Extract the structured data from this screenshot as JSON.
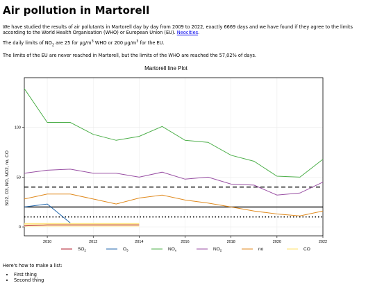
{
  "page": {
    "title": "Air pollution in Martorell",
    "para1_text": "We have studied the results of air pollutants in Martorell day by day from 2009 to 2022, exactly 6669 days and we have found if they agree to the limits according to the World Health Organisation (WHO) or European Union (EU). ",
    "para1_link": "Neocities",
    "para1_end": ".",
    "para2_a": "The daily limits of NO",
    "para2_sub": "2",
    "para2_b": " are 25 for µg/m",
    "para2_sup1": "3",
    "para2_c": " WHO or 200 µg/m",
    "para2_sup2": "3",
    "para2_d": " for the EU.",
    "para3": "The limits of the EU are never reached in Martorell, but the limits of the WHO are reached the 57,02% of days.",
    "list_intro": "Here's how to make a list:",
    "list_items": [
      "First thing",
      "Second thing"
    ]
  },
  "chart_data": {
    "type": "line",
    "title": "Martorell line Plot",
    "xlabel": "",
    "ylabel": "SO2, O3, NO, NO2, no, CO",
    "x": [
      2009,
      2010,
      2011,
      2012,
      2013,
      2014,
      2015,
      2016,
      2017,
      2018,
      2019,
      2020,
      2021,
      2022
    ],
    "xlim": [
      2009,
      2022
    ],
    "ylim": [
      -9,
      150
    ],
    "x_ticks": [
      2010,
      2012,
      2014,
      2016,
      2018,
      2020,
      2022
    ],
    "y_ticks": [
      0,
      50,
      100
    ],
    "grid": true,
    "legend_position": "bottom",
    "series": [
      {
        "name": "SO2",
        "label_main": "SO",
        "label_sub": "2",
        "color": "#b2182b",
        "values": [
          1,
          2,
          2,
          2,
          2,
          2,
          null,
          null,
          null,
          null,
          null,
          null,
          null,
          null
        ]
      },
      {
        "name": "O3",
        "label_main": "O",
        "label_sub": "3",
        "color": "#2166ac",
        "values": [
          20,
          23,
          4,
          null,
          null,
          null,
          null,
          null,
          null,
          null,
          null,
          null,
          null,
          null
        ]
      },
      {
        "name": "NOx",
        "label_main": "NO",
        "label_sub": "x",
        "color": "#4daf4a",
        "values": [
          139,
          105,
          105,
          93,
          87,
          91,
          101,
          87,
          85,
          72,
          66,
          51,
          50,
          68
        ]
      },
      {
        "name": "NO2",
        "label_main": "NO",
        "label_sub": "2",
        "color": "#984ea3",
        "values": [
          54,
          57,
          58,
          54,
          54,
          50,
          55,
          48,
          50,
          43,
          42,
          32,
          34,
          45
        ]
      },
      {
        "name": "no",
        "label_main": "no",
        "label_sub": "",
        "color": "#e08a1e",
        "values": [
          28,
          33,
          33,
          28,
          23,
          29,
          32,
          27,
          24,
          20,
          16,
          13,
          11,
          16
        ]
      },
      {
        "name": "CO",
        "label_main": "CO",
        "label_sub": "",
        "color": "#ffe066",
        "values": [
          3,
          3,
          3,
          3,
          3,
          3,
          null,
          null,
          null,
          null,
          null,
          null,
          null,
          null
        ]
      }
    ],
    "reference_lines": [
      {
        "value": 40,
        "style": "dashed"
      },
      {
        "value": 20,
        "style": "solid"
      },
      {
        "value": 10,
        "style": "dotted"
      }
    ],
    "co_band": {
      "from": 2009,
      "to": 2014,
      "low": 0,
      "high": 4,
      "color": "#fff4c2"
    }
  }
}
